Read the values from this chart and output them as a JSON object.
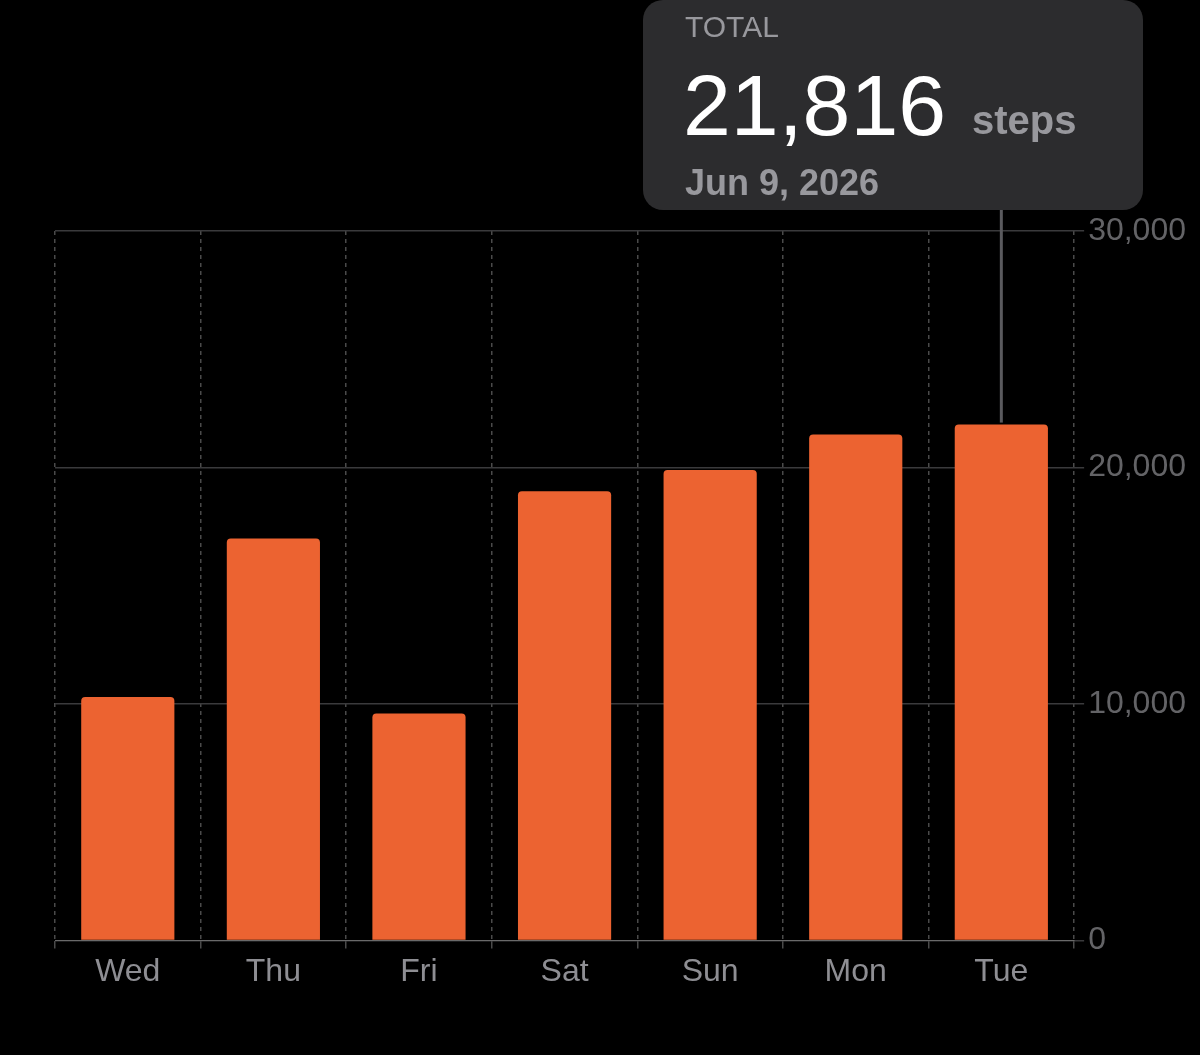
{
  "chart_data": {
    "type": "bar",
    "categories": [
      "Wed",
      "Thu",
      "Fri",
      "Sat",
      "Sun",
      "Mon",
      "Tue"
    ],
    "values": [
      10300,
      17000,
      9600,
      19000,
      19900,
      21400,
      21816
    ],
    "color": "#ec6331",
    "ylim": [
      0,
      30000
    ],
    "yticks": [
      {
        "value": 0,
        "label": "0"
      },
      {
        "value": 10000,
        "label": "10,000"
      },
      {
        "value": 20000,
        "label": "20,000"
      },
      {
        "value": 30000,
        "label": "30,000"
      }
    ],
    "grid": true,
    "annotations": [
      "TOTAL",
      {
        "text": "21,816",
        "x": "Tue",
        "y": 21816
      },
      "steps",
      "Jun 9, 2026"
    ]
  }
}
